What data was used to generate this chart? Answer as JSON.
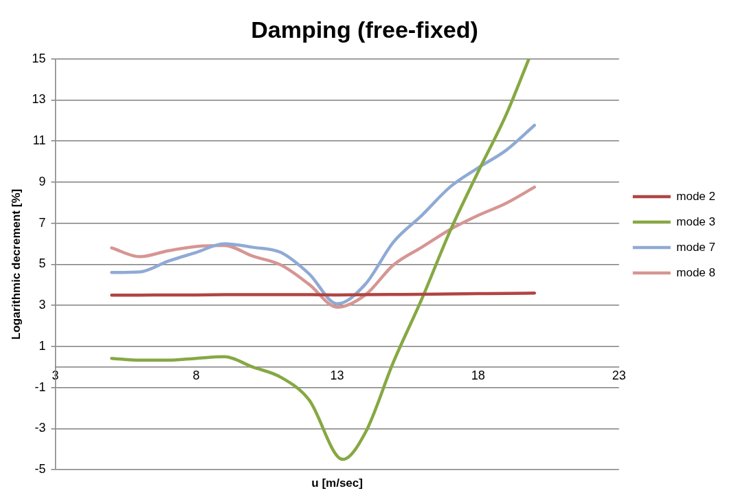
{
  "chart_data": {
    "type": "line",
    "title": "Damping (free-fixed)",
    "xlabel": "u [m/sec]",
    "ylabel": "Logarithmic decrement [%]",
    "x": [
      5,
      6,
      7,
      8,
      9,
      10,
      11,
      12,
      13,
      14,
      15,
      16,
      17,
      18,
      19,
      20
    ],
    "series": [
      {
        "name": "mode 2",
        "color": "#b04543",
        "values": [
          3.5,
          3.5,
          3.51,
          3.51,
          3.52,
          3.52,
          3.52,
          3.52,
          3.51,
          3.52,
          3.53,
          3.54,
          3.56,
          3.57,
          3.58,
          3.6
        ]
      },
      {
        "name": "mode 3",
        "color": "#86a843",
        "x": [
          5,
          6,
          7,
          8,
          9,
          10,
          11,
          12,
          13.2,
          14,
          15,
          16,
          17,
          18,
          19,
          19.8
        ],
        "values": [
          0.42,
          0.33,
          0.33,
          0.42,
          0.5,
          0.0,
          -0.5,
          -1.6,
          -4.5,
          -3.2,
          0.25,
          3.3,
          6.6,
          9.5,
          12.3,
          15
        ]
      },
      {
        "name": "mode 7",
        "color": "#8faad4",
        "values": [
          4.6,
          4.63,
          5.15,
          5.58,
          6.0,
          5.83,
          5.58,
          4.54,
          3.08,
          4.03,
          6.09,
          7.38,
          8.76,
          9.7,
          10.56,
          11.77
        ]
      },
      {
        "name": "mode 8",
        "color": "#d69693",
        "values": [
          5.8,
          5.37,
          5.66,
          5.87,
          5.92,
          5.4,
          4.97,
          4.03,
          2.91,
          3.51,
          4.97,
          5.83,
          6.69,
          7.38,
          7.98,
          8.76
        ]
      }
    ],
    "xlim": [
      3,
      23
    ],
    "xticks": [
      3,
      8,
      13,
      18,
      23
    ],
    "ylim": [
      -5,
      15
    ],
    "yticks": [
      -5,
      -3,
      -1,
      1,
      3,
      5,
      7,
      9,
      11,
      13,
      15
    ],
    "grid": "y",
    "legend": "right",
    "marker": "none",
    "line_style": "solid"
  }
}
